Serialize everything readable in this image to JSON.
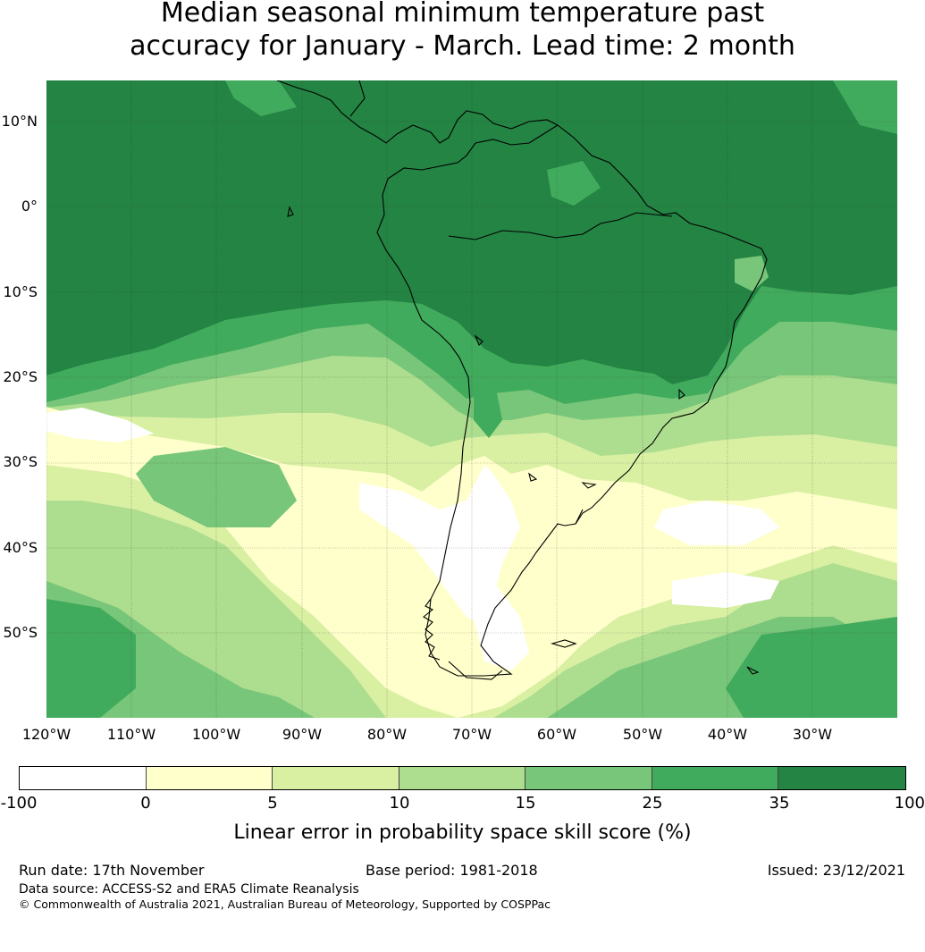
{
  "title_lines": [
    "Median seasonal minimum temperature past",
    "accuracy for January - March. Lead time: 2 month"
  ],
  "map": {
    "lat_labels": [
      "10°N",
      "0°",
      "10°S",
      "20°S",
      "30°S",
      "40°S",
      "50°S"
    ],
    "lon_labels": [
      "120°W",
      "110°W",
      "100°W",
      "90°W",
      "80°W",
      "70°W",
      "60°W",
      "50°W",
      "40°W",
      "30°W"
    ],
    "gridlines": true,
    "coastlines": true,
    "region": "South America and surrounding oceans"
  },
  "colorbar": {
    "tick_labels": [
      "-100",
      "0",
      "5",
      "10",
      "15",
      "25",
      "35",
      "100"
    ],
    "colors": [
      "#ffffff",
      "#ffffcc",
      "#d9f0a3",
      "#addd8e",
      "#78c679",
      "#41ab5d",
      "#238443"
    ],
    "label": "Linear error in probability space skill score (%)"
  },
  "footer": {
    "run_date": "Run date: 17th November",
    "base_period": "Base period: 1981-2018",
    "issued": "Issued: 23/12/2021",
    "data_source": "Data source: ACCESS-S2 and ERA5 Climate Reanalysis",
    "copyright": "© Commonwealth of Australia 2021, Australian Bureau of Meteorology, Supported by COSPPac"
  }
}
